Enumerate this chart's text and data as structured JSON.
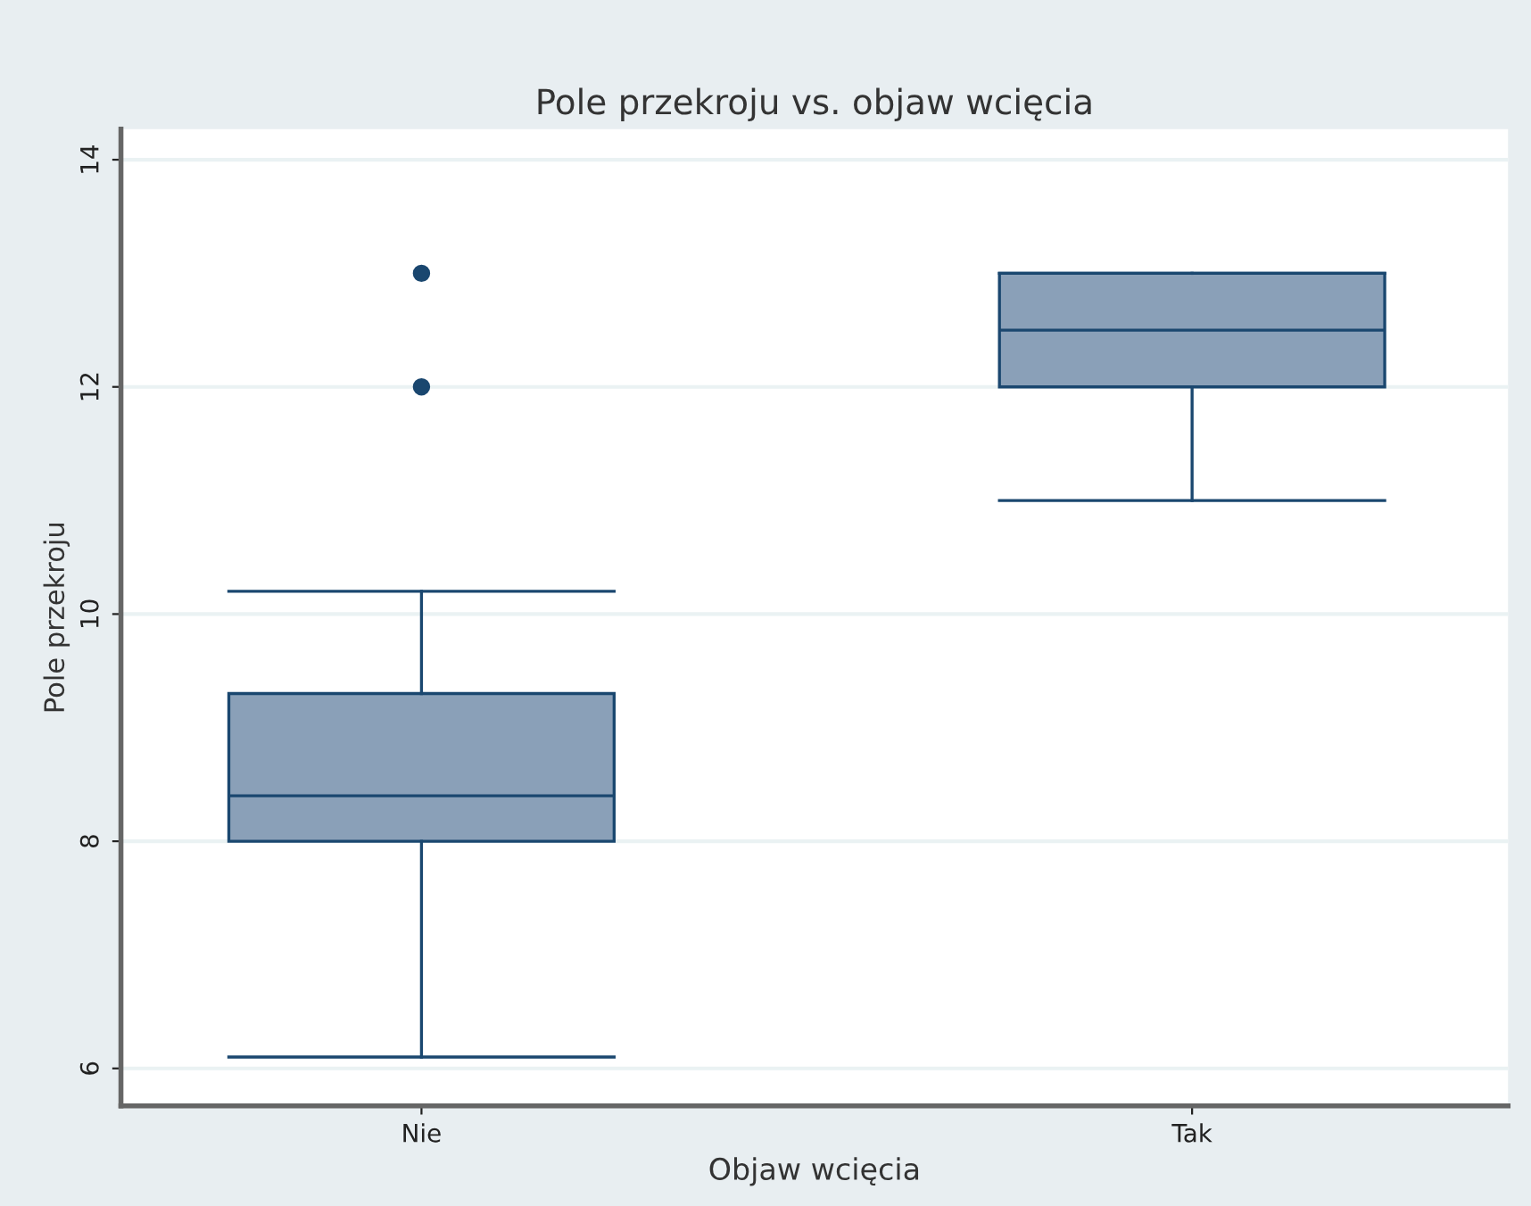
{
  "chart_data": {
    "type": "box",
    "title": "Pole przekroju vs. objaw wcięcia",
    "xlabel": "Objaw wcięcia",
    "ylabel": "Pole przekroju",
    "categories": [
      "Nie",
      "Tak"
    ],
    "boxes": [
      {
        "low": 6.1,
        "q1": 8.0,
        "median": 8.4,
        "q3": 9.3,
        "high": 10.2,
        "outliers": [
          12,
          13
        ]
      },
      {
        "low": 11,
        "q1": 12,
        "median": 12.5,
        "q3": 13,
        "high": 13
      }
    ],
    "color": "#8aa0b8",
    "ylim": [
      5.67,
      14.27
    ],
    "yticks": [
      6,
      8,
      10,
      12,
      14
    ],
    "grid": "y",
    "legend": false
  }
}
